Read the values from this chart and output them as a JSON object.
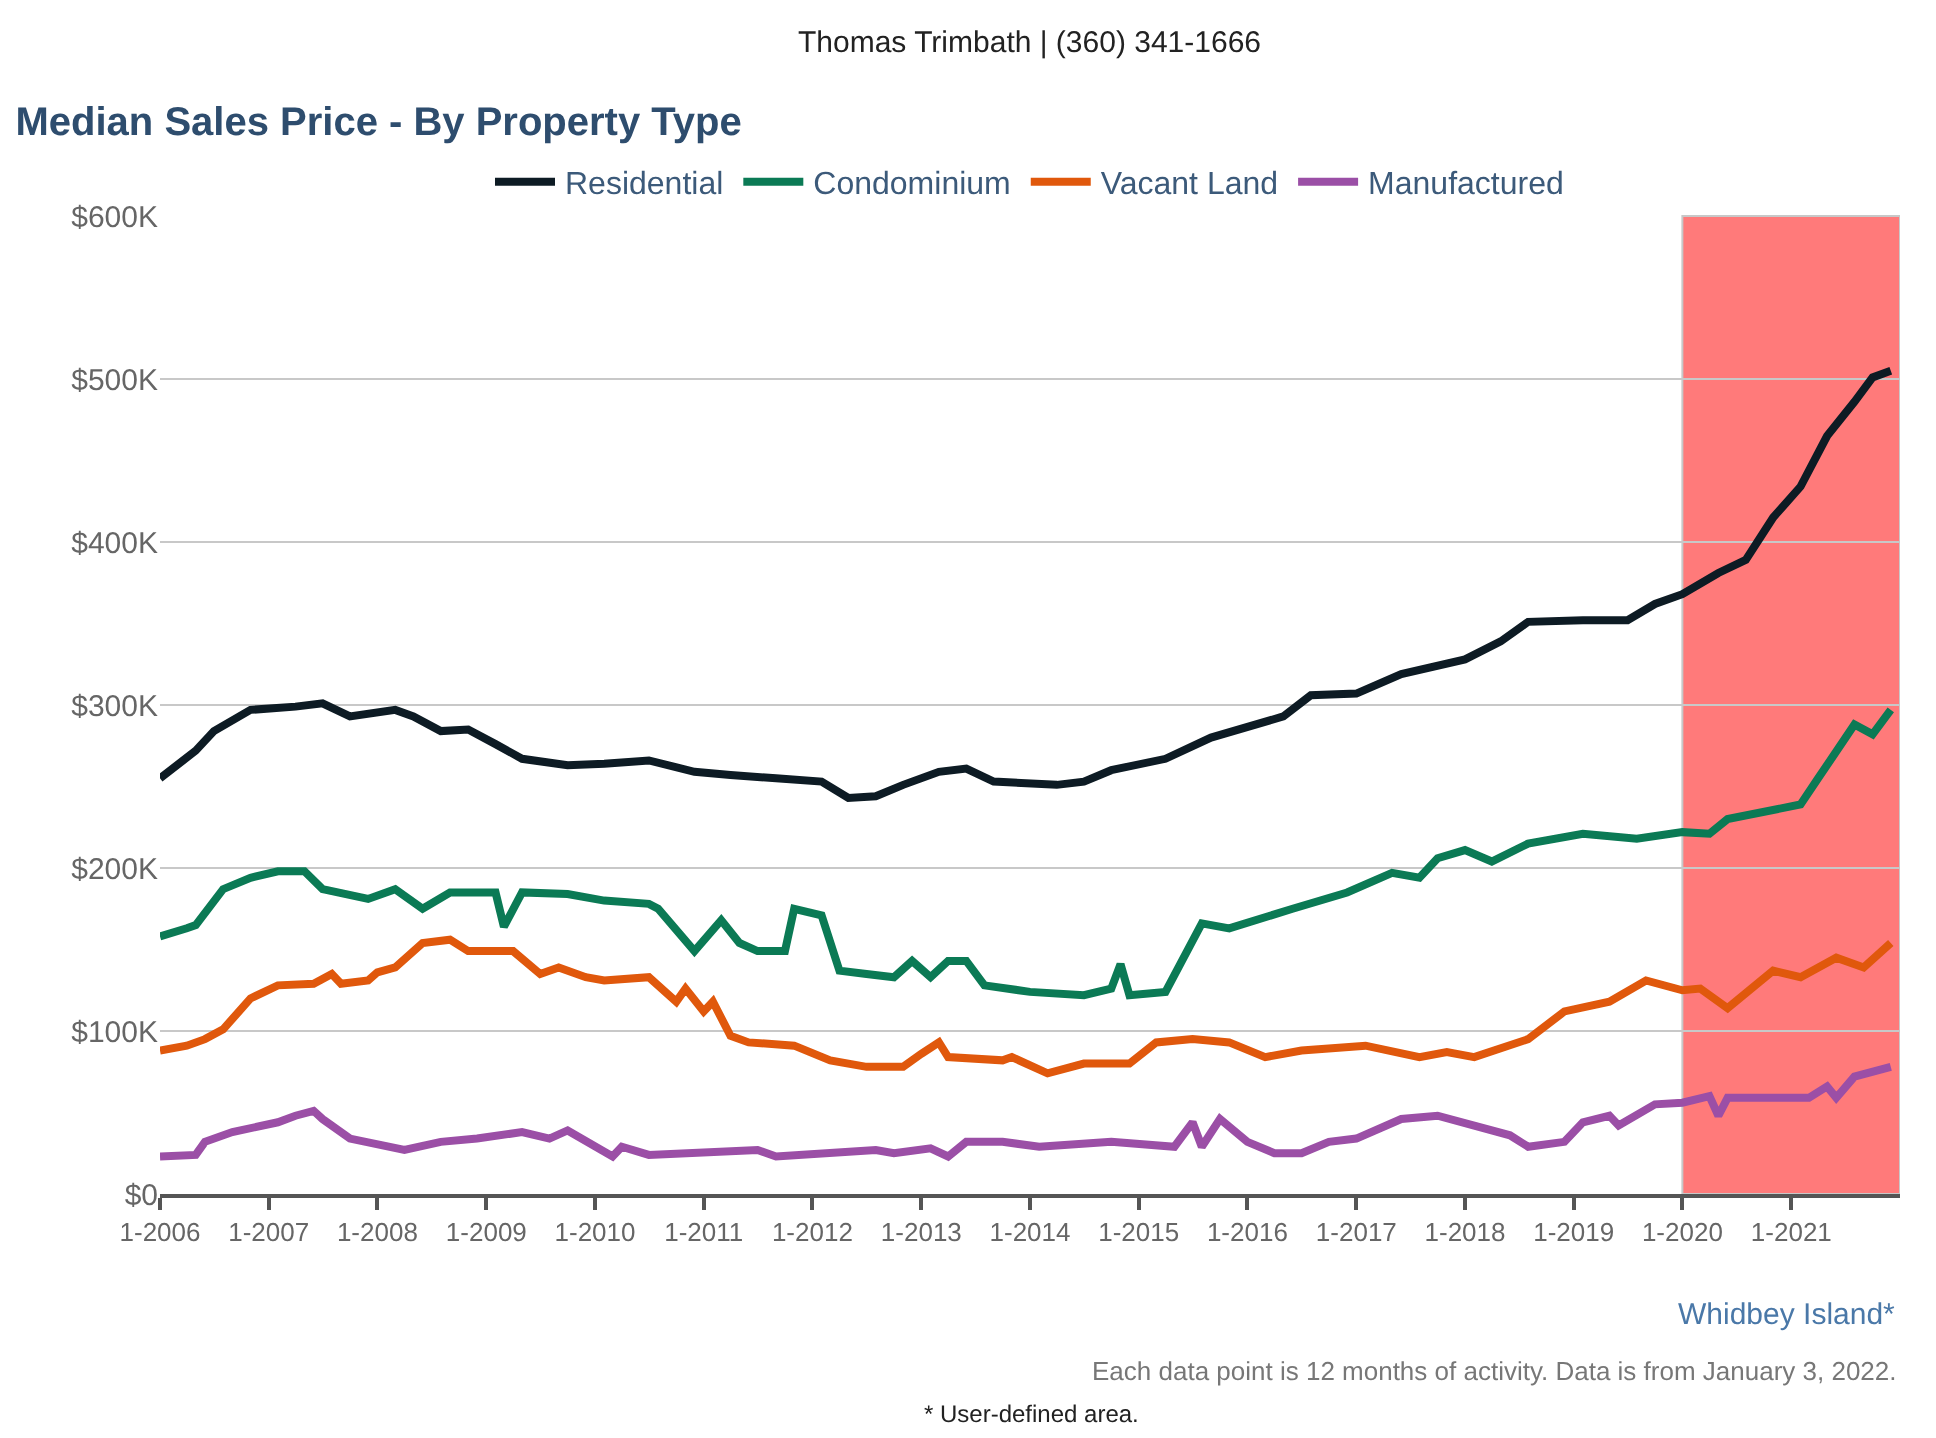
{
  "chart_data": {
    "type": "line",
    "title": "Median Sales Price - By Property Type",
    "annotations": [
      "Thomas Trimbath | (360) 341-1666",
      "Whidbey Island*",
      "Each data point is 12 months of activity. Data is from January 3, 2022.",
      "* User-defined area."
    ],
    "series": [
      {
        "name": "Residential",
        "color": "#0d1b24",
        "x": [
          "2006-01",
          "2006-05",
          "2006-07",
          "2006-11",
          "2007-04",
          "2007-07",
          "2007-10",
          "2008-03",
          "2008-05",
          "2008-08",
          "2008-11",
          "2009-02",
          "2009-05",
          "2009-10",
          "2010-02",
          "2010-07",
          "2010-12",
          "2011-04",
          "2011-09",
          "2012-02",
          "2012-05",
          "2012-08",
          "2012-11",
          "2013-03",
          "2013-06",
          "2013-09",
          "2014-04",
          "2014-07",
          "2014-10",
          "2015-04",
          "2015-09",
          "2016-05",
          "2016-08",
          "2017-01",
          "2017-06",
          "2018-01",
          "2018-05",
          "2018-08",
          "2019-02",
          "2019-07",
          "2019-10",
          "2020-01",
          "2020-05",
          "2020-08",
          "2020-11",
          "2021-02",
          "2021-05",
          "2021-08",
          "2021-10",
          "2021-12"
        ],
        "values": [
          255,
          272,
          284,
          297,
          299,
          301,
          293,
          297,
          293,
          284,
          285,
          276,
          267,
          263,
          264,
          266,
          259,
          257,
          255,
          253,
          243,
          244,
          251,
          259,
          261,
          253,
          251,
          253,
          260,
          267,
          280,
          293,
          306,
          307,
          319,
          328,
          339,
          351,
          352,
          352,
          362,
          368,
          381,
          389,
          415,
          434,
          465,
          486,
          501,
          505
        ]
      },
      {
        "name": "Condominium",
        "color": "#0b7a55",
        "x": [
          "2006-01",
          "2006-04",
          "2006-05",
          "2006-08",
          "2006-11",
          "2007-02",
          "2007-05",
          "2007-07",
          "2007-12",
          "2008-03",
          "2008-06",
          "2008-09",
          "2009-02",
          "2009-03",
          "2009-05",
          "2009-10",
          "2010-02",
          "2010-07",
          "2010-08",
          "2010-12",
          "2011-03",
          "2011-05",
          "2011-07",
          "2011-10",
          "2011-11",
          "2012-02",
          "2012-04",
          "2012-07",
          "2012-10",
          "2012-12",
          "2013-02",
          "2013-04",
          "2013-06",
          "2013-08",
          "2014-01",
          "2014-07",
          "2014-10",
          "2014-11",
          "2014-12",
          "2015-04",
          "2015-08",
          "2015-11",
          "2016-06",
          "2016-12",
          "2017-05",
          "2017-08",
          "2017-10",
          "2018-01",
          "2018-04",
          "2018-08",
          "2019-02",
          "2019-08",
          "2020-01",
          "2020-04",
          "2020-06",
          "2021-02",
          "2021-04",
          "2021-08",
          "2021-10",
          "2021-12"
        ],
        "values": [
          158,
          163,
          165,
          187,
          194,
          198,
          198,
          187,
          181,
          187,
          175,
          185,
          185,
          164,
          185,
          184,
          180,
          178,
          175,
          149,
          168,
          154,
          149,
          149,
          175,
          171,
          137,
          135,
          133,
          143,
          133,
          143,
          143,
          128,
          124,
          122,
          126,
          141,
          122,
          124,
          166,
          163,
          175,
          185,
          197,
          194,
          206,
          211,
          204,
          215,
          221,
          218,
          222,
          221,
          230,
          239,
          255,
          288,
          282,
          297
        ]
      },
      {
        "name": "Vacant Land",
        "color": "#e0580c",
        "x": [
          "2006-01",
          "2006-04",
          "2006-06",
          "2006-08",
          "2006-11",
          "2007-02",
          "2007-06",
          "2007-08",
          "2007-09",
          "2007-12",
          "2008-01",
          "2008-03",
          "2008-06",
          "2008-09",
          "2008-11",
          "2009-04",
          "2009-07",
          "2009-09",
          "2009-12",
          "2010-02",
          "2010-07",
          "2010-10",
          "2010-11",
          "2011-01",
          "2011-02",
          "2011-04",
          "2011-06",
          "2011-11",
          "2012-03",
          "2012-07",
          "2012-11",
          "2013-01",
          "2013-03",
          "2013-04",
          "2013-10",
          "2013-11",
          "2014-03",
          "2014-07",
          "2014-12",
          "2015-03",
          "2015-07",
          "2015-11",
          "2016-03",
          "2016-07",
          "2017-02",
          "2017-08",
          "2017-11",
          "2018-02",
          "2018-08",
          "2018-12",
          "2019-05",
          "2019-09",
          "2020-01",
          "2020-03",
          "2020-06",
          "2020-11",
          "2021-02",
          "2021-06",
          "2021-09",
          "2021-12"
        ],
        "values": [
          88,
          91,
          95,
          101,
          120,
          128,
          129,
          135,
          129,
          131,
          136,
          139,
          154,
          156,
          149,
          149,
          135,
          139,
          133,
          131,
          133,
          118,
          126,
          112,
          118,
          97,
          93,
          91,
          82,
          78,
          78,
          86,
          93,
          84,
          82,
          84,
          74,
          80,
          80,
          93,
          95,
          93,
          84,
          88,
          91,
          84,
          87,
          84,
          95,
          112,
          118,
          131,
          125,
          126,
          114,
          137,
          133,
          145,
          139,
          154
        ]
      },
      {
        "name": "Manufactured",
        "color": "#9b4fa6",
        "x": [
          "2006-01",
          "2006-05",
          "2006-06",
          "2006-09",
          "2007-02",
          "2007-04",
          "2007-06",
          "2007-07",
          "2007-10",
          "2008-04",
          "2008-08",
          "2008-12",
          "2009-05",
          "2009-08",
          "2009-10",
          "2010-03",
          "2010-04",
          "2010-07",
          "2011-07",
          "2011-09",
          "2012-08",
          "2012-10",
          "2013-02",
          "2013-04",
          "2013-06",
          "2013-10",
          "2014-02",
          "2014-10",
          "2015-05",
          "2015-07",
          "2015-08",
          "2015-10",
          "2016-01",
          "2016-04",
          "2016-07",
          "2016-10",
          "2017-01",
          "2017-06",
          "2017-10",
          "2018-02",
          "2018-06",
          "2018-08",
          "2018-12",
          "2019-02",
          "2019-05",
          "2019-06",
          "2019-10",
          "2020-01",
          "2020-04",
          "2020-05",
          "2020-06",
          "2021-03",
          "2021-05",
          "2021-06",
          "2021-08",
          "2021-12"
        ],
        "values": [
          23,
          24,
          32,
          38,
          44,
          48,
          51,
          46,
          34,
          27,
          32,
          34,
          38,
          34,
          39,
          23,
          29,
          24,
          27,
          23,
          27,
          25,
          28,
          23,
          32,
          32,
          29,
          32,
          29,
          44,
          29,
          46,
          32,
          25,
          25,
          32,
          34,
          46,
          48,
          42,
          36,
          29,
          32,
          44,
          48,
          42,
          55,
          56,
          60,
          48,
          59,
          59,
          66,
          59,
          72,
          78
        ]
      }
    ],
    "xlim": [
      "2006-01",
      "2022-01"
    ],
    "xticks": [
      {
        "value": "2006-01",
        "label": "1-2006"
      },
      {
        "value": "2007-01",
        "label": "1-2007"
      },
      {
        "value": "2008-01",
        "label": "1-2008"
      },
      {
        "value": "2009-01",
        "label": "1-2009"
      },
      {
        "value": "2010-01",
        "label": "1-2010"
      },
      {
        "value": "2011-01",
        "label": "1-2011"
      },
      {
        "value": "2012-01",
        "label": "1-2012"
      },
      {
        "value": "2013-01",
        "label": "1-2013"
      },
      {
        "value": "2014-01",
        "label": "1-2014"
      },
      {
        "value": "2015-01",
        "label": "1-2015"
      },
      {
        "value": "2016-01",
        "label": "1-2016"
      },
      {
        "value": "2017-01",
        "label": "1-2017"
      },
      {
        "value": "2018-01",
        "label": "1-2018"
      },
      {
        "value": "2019-01",
        "label": "1-2019"
      },
      {
        "value": "2020-01",
        "label": "1-2020"
      },
      {
        "value": "2021-01",
        "label": "1-2021"
      }
    ],
    "ylim": [
      0,
      600
    ],
    "yticks": [
      {
        "value": 0,
        "label": "$0"
      },
      {
        "value": 100,
        "label": "$100K"
      },
      {
        "value": 200,
        "label": "$200K"
      },
      {
        "value": 300,
        "label": "$300K"
      },
      {
        "value": 400,
        "label": "$400K"
      },
      {
        "value": 500,
        "label": "$500K"
      },
      {
        "value": 600,
        "label": "$600K"
      }
    ],
    "bands": [
      {
        "axis": "x",
        "from": "2020-01",
        "to": "2022-01",
        "color": "#ff5a5a"
      }
    ],
    "grid": "y",
    "legend": "top",
    "marker": "none",
    "line_style": "solid"
  }
}
